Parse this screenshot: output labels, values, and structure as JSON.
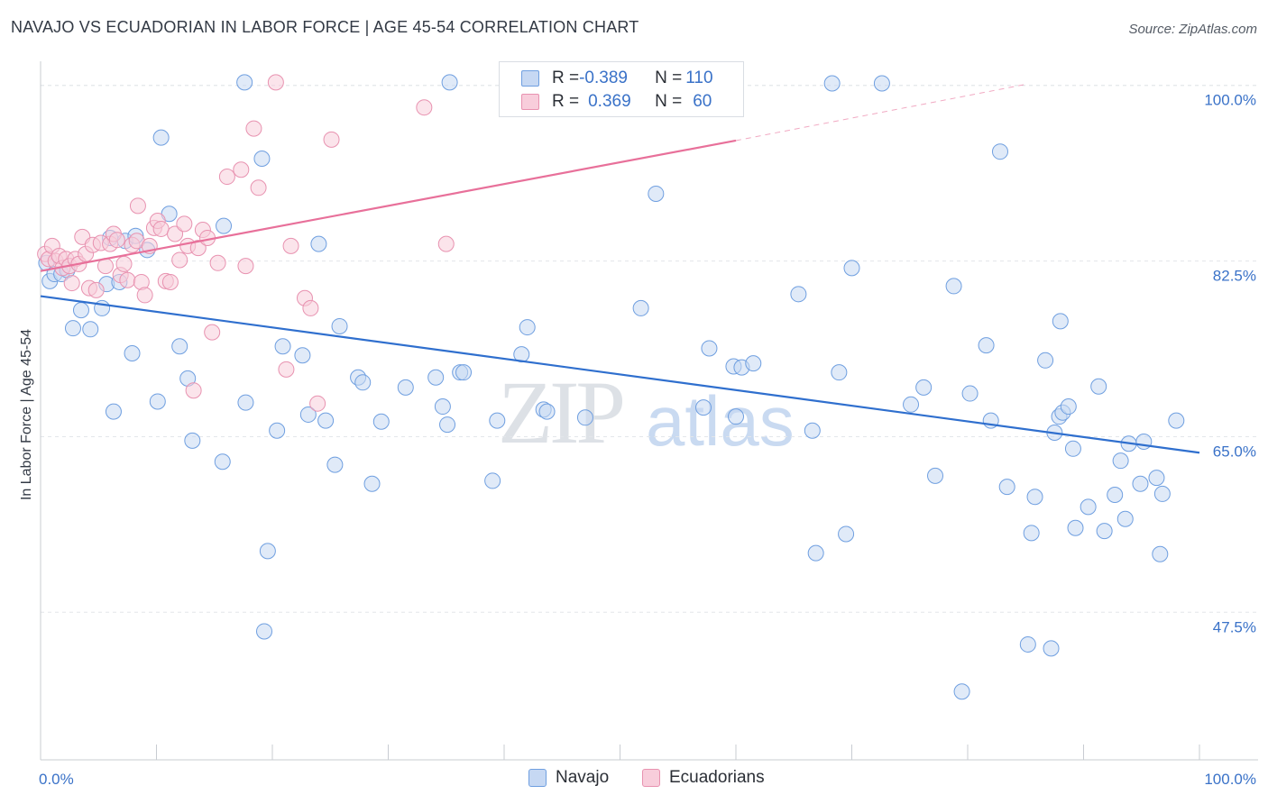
{
  "header": {
    "title": "NAVAJO VS ECUADORIAN IN LABOR FORCE | AGE 45-54 CORRELATION CHART",
    "source": "Source: ZipAtlas.com"
  },
  "watermark": {
    "zip": "ZIP",
    "atlas": "atlas"
  },
  "legend_top": {
    "rows": [
      {
        "r_label": "R = ",
        "r_value": "-0.389",
        "n_label": "N = ",
        "n_value": "110",
        "fill": "#c6d8f3",
        "stroke": "#6f9fe0"
      },
      {
        "r_label": "R = ",
        "r_value": "0.369",
        "n_label": "N = ",
        "n_value": "60",
        "fill": "#f8cddb",
        "stroke": "#e892b0"
      }
    ]
  },
  "legend_bottom": {
    "items": [
      {
        "label": "Navajo",
        "fill": "#c6d8f3",
        "stroke": "#6f9fe0"
      },
      {
        "label": "Ecuadorians",
        "fill": "#f8cddb",
        "stroke": "#e892b0"
      }
    ]
  },
  "chart_data": {
    "type": "scatter",
    "title": "NAVAJO VS ECUADORIAN IN LABOR FORCE | AGE 45-54 CORRELATION CHART",
    "xlabel": "",
    "ylabel": "In Labor Force | Age 45-54",
    "xlim": [
      0,
      100
    ],
    "ylim": [
      32.8,
      101.5
    ],
    "x_tick_labels": [
      "0.0%",
      "100.0%"
    ],
    "y_ticks": [
      {
        "value": 100.0,
        "label": "100.0%"
      },
      {
        "value": 82.5,
        "label": "82.5%"
      },
      {
        "value": 65.0,
        "label": "65.0%"
      },
      {
        "value": 47.5,
        "label": "47.5%"
      }
    ],
    "grid": true,
    "legend_position": "top-center",
    "series": [
      {
        "name": "Navajo",
        "color": "#6f9fe0",
        "fill": "#c6d8f3",
        "trend": {
          "x": [
            0,
            100
          ],
          "y": [
            79.0,
            63.4
          ],
          "color": "#2f6fce"
        },
        "points": [
          [
            0.5,
            82.3
          ],
          [
            0.8,
            80.5
          ],
          [
            1.2,
            81.2
          ],
          [
            1.8,
            81.2
          ],
          [
            2.3,
            81.6
          ],
          [
            3.5,
            77.6
          ],
          [
            2.8,
            75.8
          ],
          [
            4.3,
            75.7
          ],
          [
            5.3,
            77.8
          ],
          [
            5.7,
            80.2
          ],
          [
            6.0,
            84.8
          ],
          [
            6.8,
            80.4
          ],
          [
            7.3,
            84.5
          ],
          [
            8.2,
            85.0
          ],
          [
            9.2,
            83.6
          ],
          [
            7.9,
            73.3
          ],
          [
            6.3,
            67.5
          ],
          [
            10.4,
            94.8
          ],
          [
            11.1,
            87.2
          ],
          [
            12.0,
            74.0
          ],
          [
            12.7,
            70.8
          ],
          [
            13.1,
            64.6
          ],
          [
            10.1,
            68.5
          ],
          [
            15.8,
            86.0
          ],
          [
            15.7,
            62.5
          ],
          [
            17.6,
            100.3
          ],
          [
            17.7,
            68.4
          ],
          [
            19.1,
            92.7
          ],
          [
            19.6,
            53.6
          ],
          [
            19.3,
            45.6
          ],
          [
            20.4,
            65.6
          ],
          [
            20.9,
            74.0
          ],
          [
            22.6,
            73.1
          ],
          [
            23.1,
            67.2
          ],
          [
            24.0,
            84.2
          ],
          [
            24.6,
            66.6
          ],
          [
            25.4,
            62.2
          ],
          [
            25.8,
            76.0
          ],
          [
            27.4,
            70.9
          ],
          [
            27.8,
            70.4
          ],
          [
            28.6,
            60.3
          ],
          [
            29.4,
            66.5
          ],
          [
            31.5,
            69.9
          ],
          [
            34.1,
            70.9
          ],
          [
            34.7,
            68.0
          ],
          [
            35.1,
            66.2
          ],
          [
            35.3,
            100.3
          ],
          [
            36.2,
            71.4
          ],
          [
            36.5,
            71.4
          ],
          [
            39.0,
            60.6
          ],
          [
            39.4,
            66.6
          ],
          [
            40.3,
            100.1
          ],
          [
            41.5,
            73.2
          ],
          [
            43.4,
            67.7
          ],
          [
            43.7,
            67.5
          ],
          [
            47.0,
            66.9
          ],
          [
            49.7,
            100.2
          ],
          [
            53.1,
            89.2
          ],
          [
            56.2,
            99.7
          ],
          [
            57.2,
            67.9
          ],
          [
            59.8,
            72.0
          ],
          [
            60.5,
            71.9
          ],
          [
            65.4,
            79.2
          ],
          [
            66.6,
            65.6
          ],
          [
            66.9,
            53.4
          ],
          [
            68.3,
            100.2
          ],
          [
            68.9,
            71.4
          ],
          [
            69.5,
            55.3
          ],
          [
            70.0,
            81.8
          ],
          [
            72.6,
            100.2
          ],
          [
            75.1,
            68.2
          ],
          [
            76.2,
            69.9
          ],
          [
            77.2,
            61.1
          ],
          [
            78.8,
            80.0
          ],
          [
            79.5,
            39.6
          ],
          [
            80.2,
            69.3
          ],
          [
            81.6,
            74.1
          ],
          [
            82.0,
            66.6
          ],
          [
            82.8,
            93.4
          ],
          [
            83.4,
            60.0
          ],
          [
            85.2,
            44.3
          ],
          [
            85.5,
            55.4
          ],
          [
            85.8,
            59.0
          ],
          [
            86.7,
            72.6
          ],
          [
            87.2,
            43.9
          ],
          [
            87.5,
            65.4
          ],
          [
            87.9,
            67.0
          ],
          [
            88.2,
            67.4
          ],
          [
            88.7,
            68.0
          ],
          [
            89.1,
            63.8
          ],
          [
            89.3,
            55.9
          ],
          [
            90.4,
            58.0
          ],
          [
            91.3,
            70.0
          ],
          [
            91.8,
            55.6
          ],
          [
            92.7,
            59.2
          ],
          [
            93.2,
            62.6
          ],
          [
            93.6,
            56.8
          ],
          [
            93.9,
            64.3
          ],
          [
            94.9,
            60.3
          ],
          [
            95.2,
            64.5
          ],
          [
            96.3,
            60.9
          ],
          [
            96.6,
            53.3
          ],
          [
            96.8,
            59.3
          ],
          [
            98.0,
            66.6
          ],
          [
            51.8,
            77.8
          ],
          [
            42.0,
            75.9
          ],
          [
            57.7,
            73.8
          ],
          [
            61.5,
            72.3
          ],
          [
            88.0,
            76.5
          ],
          [
            60.0,
            67.0
          ]
        ]
      },
      {
        "name": "Ecuadorians",
        "color": "#e892b0",
        "fill": "#f8cddb",
        "trend": {
          "x": [
            0,
            60
          ],
          "y": [
            81.5,
            94.5
          ],
          "color": "#e8709a"
        },
        "trend_dashed": {
          "x": [
            60,
            85
          ],
          "y": [
            94.5,
            100.1
          ]
        },
        "points": [
          [
            0.4,
            83.2
          ],
          [
            0.7,
            82.7
          ],
          [
            1.0,
            84.0
          ],
          [
            1.3,
            82.5
          ],
          [
            1.6,
            83.0
          ],
          [
            1.9,
            81.8
          ],
          [
            2.2,
            82.7
          ],
          [
            2.5,
            82.0
          ],
          [
            2.7,
            80.3
          ],
          [
            3.0,
            82.7
          ],
          [
            3.3,
            82.2
          ],
          [
            3.6,
            84.9
          ],
          [
            3.9,
            83.2
          ],
          [
            4.2,
            79.8
          ],
          [
            4.5,
            84.1
          ],
          [
            4.8,
            79.6
          ],
          [
            5.2,
            84.3
          ],
          [
            5.6,
            82.0
          ],
          [
            6.0,
            84.2
          ],
          [
            6.3,
            85.2
          ],
          [
            6.6,
            84.6
          ],
          [
            6.9,
            81.1
          ],
          [
            7.2,
            82.2
          ],
          [
            7.5,
            80.6
          ],
          [
            7.9,
            84.1
          ],
          [
            8.3,
            84.5
          ],
          [
            8.7,
            80.4
          ],
          [
            9.0,
            79.1
          ],
          [
            9.4,
            84.0
          ],
          [
            9.8,
            85.8
          ],
          [
            10.1,
            86.5
          ],
          [
            10.4,
            85.7
          ],
          [
            10.8,
            80.5
          ],
          [
            11.2,
            80.4
          ],
          [
            11.6,
            85.2
          ],
          [
            12.0,
            82.6
          ],
          [
            12.4,
            86.2
          ],
          [
            12.7,
            84.0
          ],
          [
            13.2,
            69.6
          ],
          [
            13.6,
            83.8
          ],
          [
            14.0,
            85.6
          ],
          [
            14.4,
            84.8
          ],
          [
            14.8,
            75.4
          ],
          [
            15.3,
            82.3
          ],
          [
            16.1,
            90.9
          ],
          [
            17.3,
            91.6
          ],
          [
            17.7,
            82.0
          ],
          [
            18.4,
            95.7
          ],
          [
            18.8,
            89.8
          ],
          [
            20.3,
            100.3
          ],
          [
            21.2,
            71.7
          ],
          [
            21.6,
            84.0
          ],
          [
            22.8,
            78.8
          ],
          [
            23.3,
            77.8
          ],
          [
            23.9,
            68.3
          ],
          [
            25.1,
            94.6
          ],
          [
            33.1,
            97.8
          ],
          [
            35.0,
            84.2
          ],
          [
            59.6,
            100.2
          ],
          [
            8.4,
            88.0
          ]
        ]
      }
    ]
  }
}
